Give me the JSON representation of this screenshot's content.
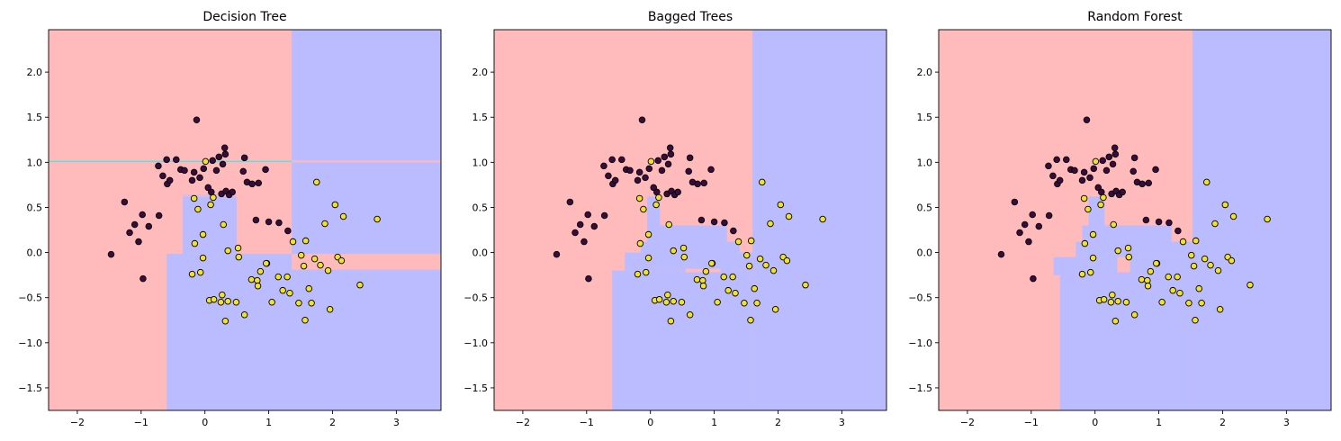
{
  "figure": {
    "panel_titles": [
      "Decision Tree",
      "Bagged Trees",
      "Random Forest"
    ]
  },
  "colors": {
    "region_class0": "#ffbbbb",
    "region_class1": "#bbbbff",
    "boundary": "#66dddd",
    "point_class0": "#3b0a3f",
    "point_class1": "#f2e12a",
    "point_edge": "#000000"
  },
  "chart_data": [
    {
      "type": "scatter",
      "title": "Decision Tree",
      "xlabel": "",
      "ylabel": "",
      "xlim": [
        -2.45,
        3.7
      ],
      "ylim": [
        -1.75,
        2.47
      ],
      "xticks": [
        -2,
        -1,
        0,
        1,
        2,
        3
      ],
      "yticks": [
        -1.5,
        -1.0,
        -0.5,
        0.0,
        0.5,
        1.0,
        1.5,
        2.0
      ],
      "grid": false,
      "decision_regions": {
        "background_class": 0,
        "class1_rects": [
          {
            "x": [
              1.36,
              3.7
            ],
            "y": [
              1.02,
              2.47
            ]
          },
          {
            "x": [
              1.36,
              3.7
            ],
            "y": [
              -0.015,
              1.0
            ]
          },
          {
            "x": [
              -0.6,
              3.7
            ],
            "y": [
              -1.75,
              -0.19
            ]
          },
          {
            "x": [
              -0.6,
              1.36
            ],
            "y": [
              -0.19,
              -0.015
            ]
          },
          {
            "x": [
              -0.35,
              0.5
            ],
            "y": [
              -0.015,
              0.62
            ]
          },
          {
            "x": [
              -0.35,
              0.3
            ],
            "y": [
              0.63,
              0.64
            ]
          }
        ],
        "class0_rects": [
          {
            "x": [
              0.5,
              1.36
            ],
            "y": [
              -0.015,
              0.62
            ]
          }
        ],
        "boundary_lines": [
          {
            "x": [
              -2.45,
              1.36
            ],
            "y": [
              1.01,
              1.01
            ]
          }
        ]
      }
    },
    {
      "type": "scatter",
      "title": "Bagged Trees",
      "xlabel": "",
      "ylabel": "",
      "xlim": [
        -2.45,
        3.7
      ],
      "ylim": [
        -1.75,
        2.47
      ],
      "xticks": [
        -2,
        -1,
        0,
        1,
        2,
        3
      ],
      "yticks": [
        -1.5,
        -1.0,
        -0.5,
        0.0,
        0.5,
        1.0,
        1.5,
        2.0
      ],
      "grid": false,
      "decision_regions": {
        "background_class": 0,
        "class1_rects": [
          {
            "x": [
              1.6,
              3.7
            ],
            "y": [
              -1.75,
              2.47
            ]
          },
          {
            "x": [
              -0.6,
              1.6
            ],
            "y": [
              -1.75,
              -0.2
            ]
          },
          {
            "x": [
              -0.4,
              1.6
            ],
            "y": [
              -0.2,
              0.0
            ]
          },
          {
            "x": [
              -0.15,
              1.4
            ],
            "y": [
              0.0,
              0.12
            ]
          },
          {
            "x": [
              -0.05,
              1.2
            ],
            "y": [
              0.12,
              0.3
            ]
          },
          {
            "x": [
              -0.05,
              0.15
            ],
            "y": [
              0.3,
              0.62
            ]
          }
        ],
        "class0_rects": [
          {
            "x": [
              0.55,
              1.1
            ],
            "y": [
              -0.22,
              -0.18
            ]
          }
        ],
        "boundary_lines": []
      }
    },
    {
      "type": "scatter",
      "title": "Random Forest",
      "xlabel": "",
      "ylabel": "",
      "xlim": [
        -2.45,
        3.7
      ],
      "ylim": [
        -1.75,
        2.47
      ],
      "xticks": [
        -2,
        -1,
        0,
        1,
        2,
        3
      ],
      "yticks": [
        -1.5,
        -1.0,
        -0.5,
        0.0,
        0.5,
        1.0,
        1.5,
        2.0
      ],
      "grid": false,
      "decision_regions": {
        "background_class": 0,
        "class1_rects": [
          {
            "x": [
              1.53,
              3.7
            ],
            "y": [
              -1.75,
              2.47
            ]
          },
          {
            "x": [
              -0.55,
              1.53
            ],
            "y": [
              -1.75,
              -0.25
            ]
          },
          {
            "x": [
              -0.65,
              1.53
            ],
            "y": [
              -0.25,
              -0.05
            ]
          },
          {
            "x": [
              -0.3,
              1.53
            ],
            "y": [
              -0.05,
              0.12
            ]
          },
          {
            "x": [
              -0.2,
              1.2
            ],
            "y": [
              0.12,
              0.3
            ]
          },
          {
            "x": [
              -0.1,
              0.15
            ],
            "y": [
              0.3,
              0.62
            ]
          }
        ],
        "class0_rects": [
          {
            "x": [
              0.35,
              0.55
            ],
            "y": [
              -0.22,
              -0.05
            ]
          }
        ],
        "boundary_lines": []
      }
    }
  ],
  "points": [
    {
      "x": -1.47,
      "y": -0.02,
      "c": 0
    },
    {
      "x": -1.26,
      "y": 0.56,
      "c": 0
    },
    {
      "x": -1.18,
      "y": 0.22,
      "c": 0
    },
    {
      "x": -1.1,
      "y": 0.31,
      "c": 0
    },
    {
      "x": -1.04,
      "y": 0.12,
      "c": 0
    },
    {
      "x": -0.98,
      "y": 0.42,
      "c": 0
    },
    {
      "x": -0.97,
      "y": -0.29,
      "c": 0
    },
    {
      "x": -0.88,
      "y": 0.29,
      "c": 0
    },
    {
      "x": -0.72,
      "y": 0.41,
      "c": 0
    },
    {
      "x": -0.73,
      "y": 0.96,
      "c": 0
    },
    {
      "x": -0.66,
      "y": 0.85,
      "c": 0
    },
    {
      "x": -0.6,
      "y": 1.03,
      "c": 0
    },
    {
      "x": -0.59,
      "y": 0.76,
      "c": 0
    },
    {
      "x": -0.55,
      "y": 0.8,
      "c": 0
    },
    {
      "x": -0.45,
      "y": 1.03,
      "c": 0
    },
    {
      "x": -0.38,
      "y": 0.92,
      "c": 0
    },
    {
      "x": -0.32,
      "y": 0.91,
      "c": 0
    },
    {
      "x": -0.2,
      "y": 0.8,
      "c": 0
    },
    {
      "x": -0.17,
      "y": 0.89,
      "c": 0
    },
    {
      "x": -0.13,
      "y": 1.47,
      "c": 0
    },
    {
      "x": -0.08,
      "y": 0.83,
      "c": 0
    },
    {
      "x": -0.02,
      "y": 0.93,
      "c": 0
    },
    {
      "x": 0.05,
      "y": 0.72,
      "c": 0
    },
    {
      "x": 0.1,
      "y": 0.67,
      "c": 0
    },
    {
      "x": 0.12,
      "y": 1.02,
      "c": 0
    },
    {
      "x": 0.18,
      "y": 0.91,
      "c": 0
    },
    {
      "x": 0.22,
      "y": 1.06,
      "c": 0
    },
    {
      "x": 0.26,
      "y": 0.65,
      "c": 0
    },
    {
      "x": 0.28,
      "y": 0.98,
      "c": 0
    },
    {
      "x": 0.31,
      "y": 1.16,
      "c": 0
    },
    {
      "x": 0.32,
      "y": 1.09,
      "c": 0
    },
    {
      "x": 0.33,
      "y": 0.68,
      "c": 0
    },
    {
      "x": 0.38,
      "y": 0.64,
      "c": 0
    },
    {
      "x": 0.43,
      "y": 0.67,
      "c": 0
    },
    {
      "x": 0.6,
      "y": 0.9,
      "c": 0
    },
    {
      "x": 0.62,
      "y": 1.05,
      "c": 0
    },
    {
      "x": 0.66,
      "y": 0.78,
      "c": 0
    },
    {
      "x": 0.74,
      "y": 0.76,
      "c": 0
    },
    {
      "x": 0.84,
      "y": 0.77,
      "c": 0
    },
    {
      "x": 0.95,
      "y": 0.92,
      "c": 0
    },
    {
      "x": 0.97,
      "y": -0.12,
      "c": 0
    },
    {
      "x": 1.0,
      "y": 0.34,
      "c": 0
    },
    {
      "x": 1.16,
      "y": 0.33,
      "c": 0
    },
    {
      "x": 1.3,
      "y": 0.24,
      "c": 0
    },
    {
      "x": 0.8,
      "y": 0.36,
      "c": 0
    },
    {
      "x": -0.17,
      "y": 0.6,
      "c": 1
    },
    {
      "x": 0.01,
      "y": 1.01,
      "c": 1
    },
    {
      "x": -0.11,
      "y": 0.48,
      "c": 1
    },
    {
      "x": 0.09,
      "y": 0.53,
      "c": 1
    },
    {
      "x": 0.13,
      "y": 0.61,
      "c": 1
    },
    {
      "x": -0.16,
      "y": 0.1,
      "c": 1
    },
    {
      "x": -0.03,
      "y": 0.2,
      "c": 1
    },
    {
      "x": -0.03,
      "y": -0.06,
      "c": 1
    },
    {
      "x": -0.2,
      "y": -0.24,
      "c": 1
    },
    {
      "x": -0.07,
      "y": -0.22,
      "c": 1
    },
    {
      "x": 0.29,
      "y": 0.31,
      "c": 1
    },
    {
      "x": 0.36,
      "y": 0.02,
      "c": 1
    },
    {
      "x": 0.52,
      "y": 0.05,
      "c": 1
    },
    {
      "x": 0.07,
      "y": -0.53,
      "c": 1
    },
    {
      "x": 0.14,
      "y": -0.52,
      "c": 1
    },
    {
      "x": 0.27,
      "y": -0.47,
      "c": 1
    },
    {
      "x": 0.36,
      "y": -0.54,
      "c": 1
    },
    {
      "x": 0.49,
      "y": -0.55,
      "c": 1
    },
    {
      "x": 0.32,
      "y": -0.76,
      "c": 1
    },
    {
      "x": 0.62,
      "y": -0.69,
      "c": 1
    },
    {
      "x": 0.53,
      "y": -0.05,
      "c": 1
    },
    {
      "x": 0.73,
      "y": -0.3,
      "c": 1
    },
    {
      "x": 0.82,
      "y": -0.31,
      "c": 1
    },
    {
      "x": 0.87,
      "y": -0.21,
      "c": 1
    },
    {
      "x": 0.96,
      "y": -0.12,
      "c": 1
    },
    {
      "x": 1.05,
      "y": -0.55,
      "c": 1
    },
    {
      "x": 1.15,
      "y": -0.27,
      "c": 1
    },
    {
      "x": 1.22,
      "y": -0.42,
      "c": 1
    },
    {
      "x": 1.29,
      "y": -0.27,
      "c": 1
    },
    {
      "x": 1.33,
      "y": -0.45,
      "c": 1
    },
    {
      "x": 1.38,
      "y": 0.12,
      "c": 1
    },
    {
      "x": 1.51,
      "y": -0.03,
      "c": 1
    },
    {
      "x": 1.55,
      "y": -0.15,
      "c": 1
    },
    {
      "x": 1.58,
      "y": 0.13,
      "c": 1
    },
    {
      "x": 1.63,
      "y": -0.4,
      "c": 1
    },
    {
      "x": 1.67,
      "y": -0.56,
      "c": 1
    },
    {
      "x": 1.72,
      "y": -0.07,
      "c": 1
    },
    {
      "x": 1.75,
      "y": 0.78,
      "c": 1
    },
    {
      "x": 1.81,
      "y": -0.14,
      "c": 1
    },
    {
      "x": 1.88,
      "y": 0.32,
      "c": 1
    },
    {
      "x": 1.93,
      "y": -0.2,
      "c": 1
    },
    {
      "x": 1.96,
      "y": -0.63,
      "c": 1
    },
    {
      "x": 2.04,
      "y": 0.53,
      "c": 1
    },
    {
      "x": 2.08,
      "y": -0.05,
      "c": 1
    },
    {
      "x": 2.14,
      "y": -0.09,
      "c": 1
    },
    {
      "x": 2.17,
      "y": 0.4,
      "c": 1
    },
    {
      "x": 2.43,
      "y": -0.36,
      "c": 1
    },
    {
      "x": 2.7,
      "y": 0.37,
      "c": 1
    },
    {
      "x": 1.57,
      "y": -0.75,
      "c": 1
    },
    {
      "x": 1.47,
      "y": -0.56,
      "c": 1
    },
    {
      "x": 0.25,
      "y": -0.55,
      "c": 1
    },
    {
      "x": 0.83,
      "y": -0.37,
      "c": 1
    }
  ]
}
